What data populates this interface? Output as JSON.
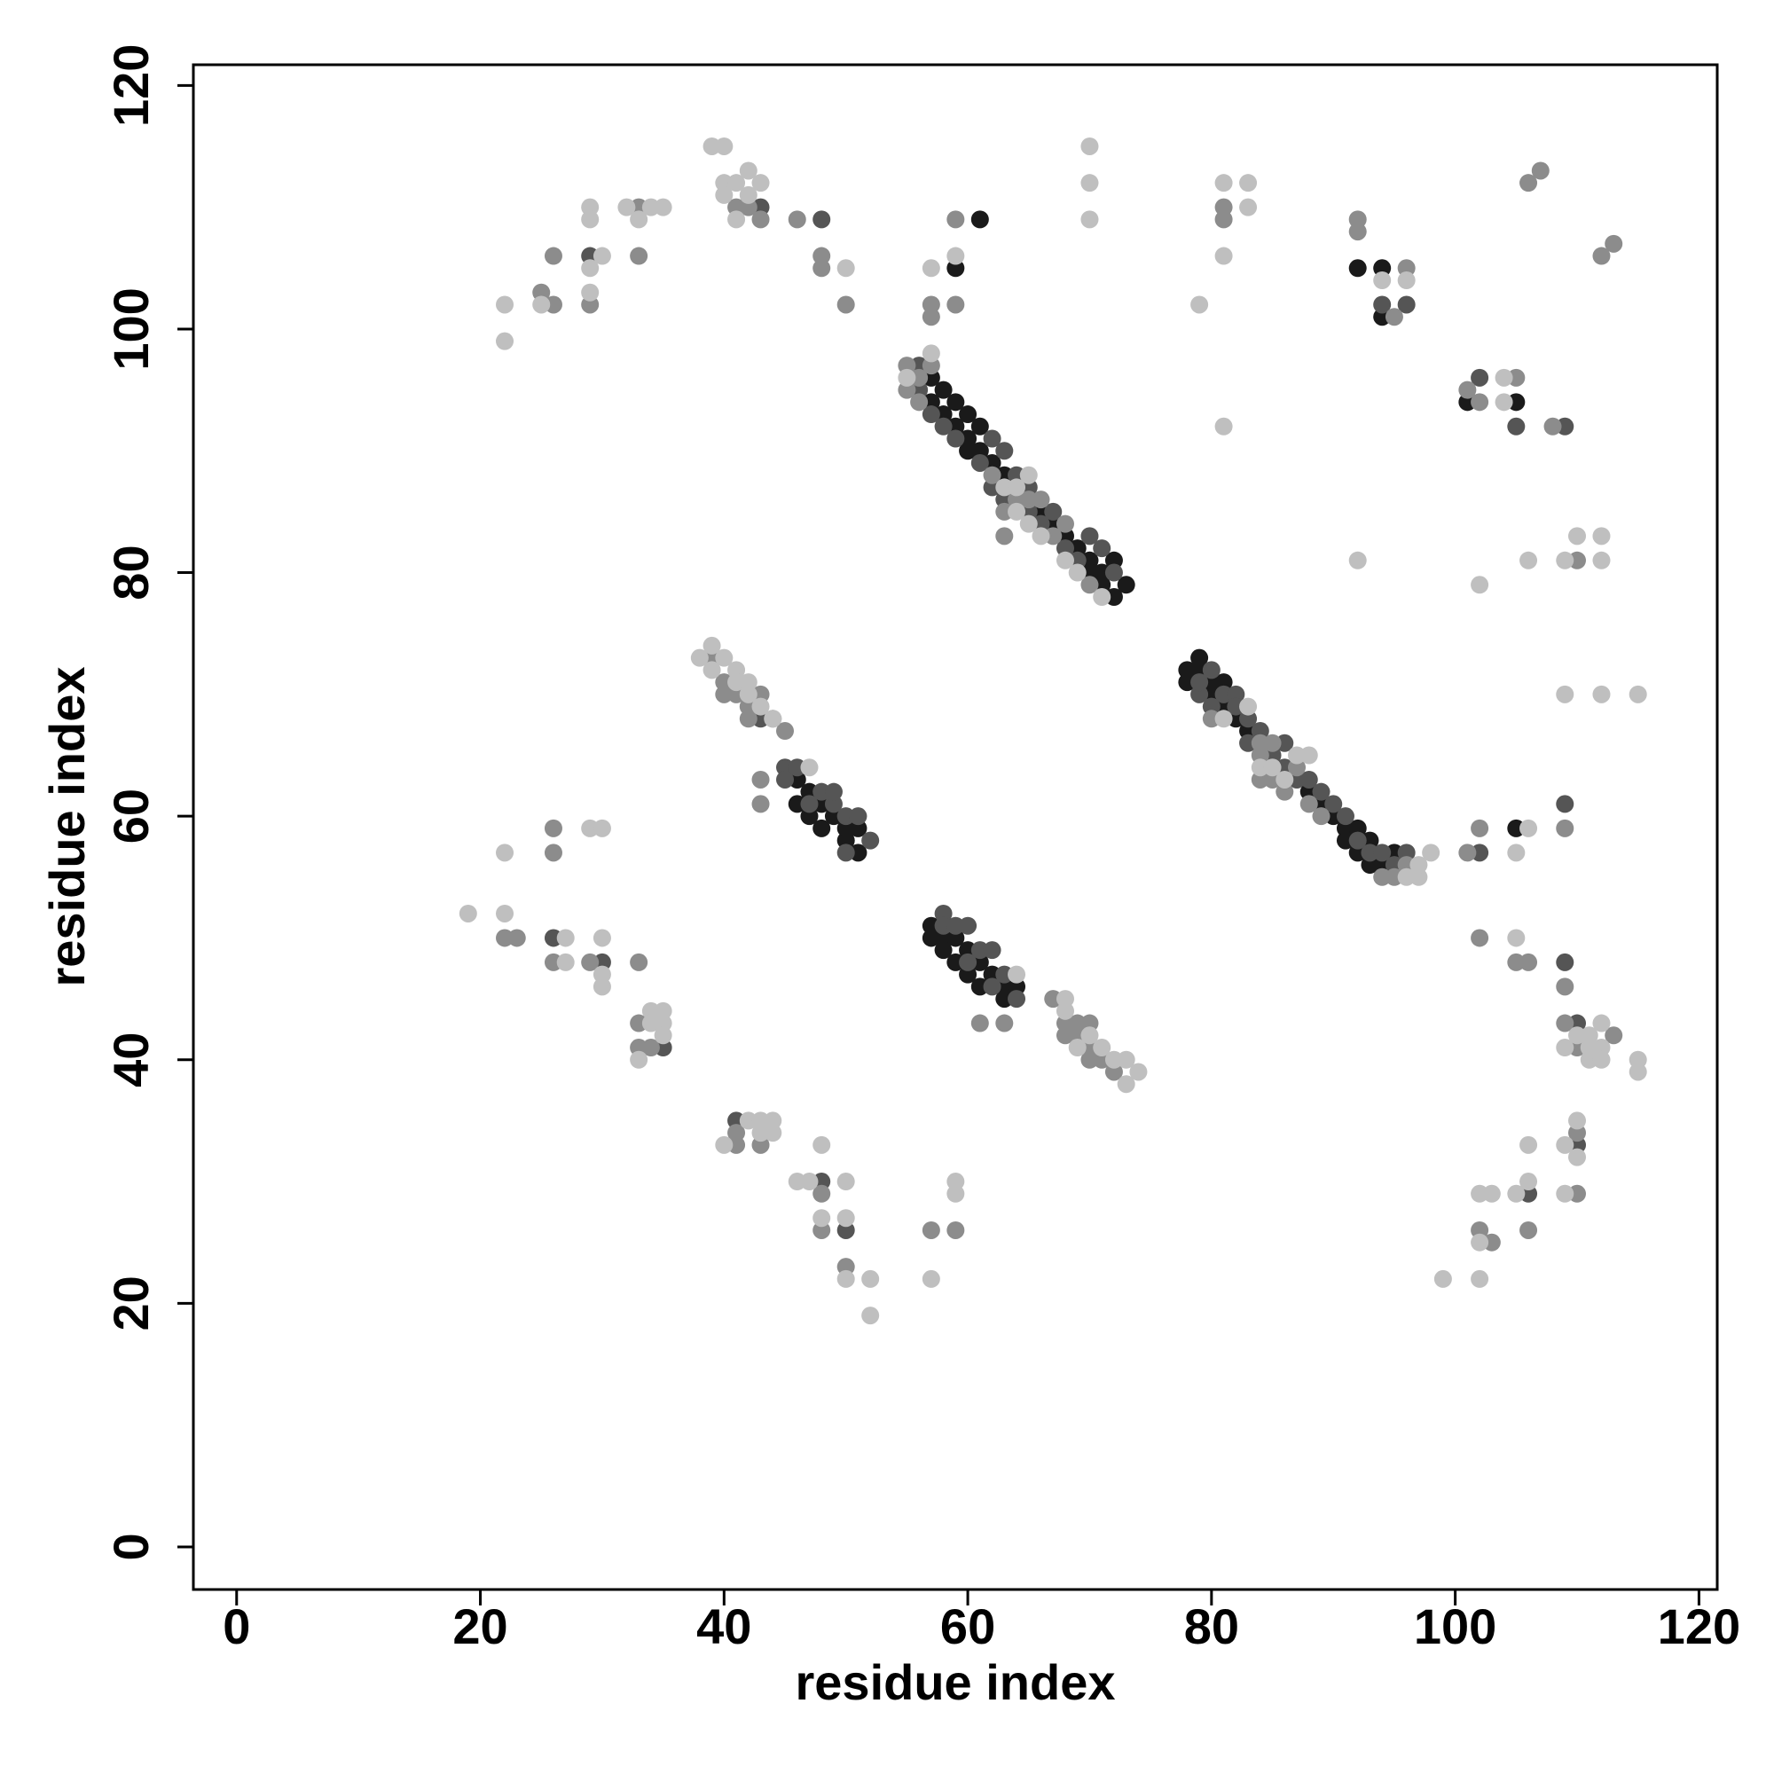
{
  "chart_data": {
    "type": "scatter",
    "xlabel": "residue index",
    "ylabel": "residue index",
    "xlim": [
      -3.55,
      121.5
    ],
    "ylim": [
      -3.5,
      121.7
    ],
    "xticks": [
      0,
      20,
      40,
      60,
      80,
      100,
      120
    ],
    "yticks": [
      0,
      20,
      40,
      60,
      80,
      100,
      120
    ],
    "series": [
      {
        "color": "#1a1a1a",
        "x": [
          57,
          57,
          58,
          58,
          59,
          59,
          60,
          60,
          60,
          61,
          61,
          62,
          63,
          66,
          67,
          68,
          69,
          70,
          70,
          71,
          71,
          72,
          72,
          73,
          78,
          78,
          79,
          79,
          80,
          80,
          81,
          81,
          82,
          83,
          88,
          89,
          90,
          91,
          91,
          92,
          92,
          93,
          93,
          94,
          95,
          46,
          46,
          47,
          47,
          48,
          48,
          49,
          50,
          51,
          50,
          51,
          57,
          57,
          58,
          58,
          59,
          59,
          60,
          60,
          61,
          61,
          62,
          63,
          63,
          64,
          59,
          61,
          92,
          94,
          94,
          101,
          105,
          105
        ],
        "values": [
          96,
          94,
          93,
          95,
          92,
          94,
          91,
          93,
          90,
          90,
          92,
          89,
          88,
          85,
          84,
          83,
          82,
          81,
          80,
          80,
          79,
          78,
          81,
          79,
          71,
          72,
          72,
          73,
          70,
          71,
          69,
          71,
          68,
          67,
          62,
          61,
          60,
          59,
          58,
          59,
          57,
          58,
          56,
          56,
          57,
          63,
          61,
          62,
          60,
          61,
          59,
          60,
          58,
          57,
          59,
          59,
          51,
          50,
          50,
          49,
          48,
          50,
          47,
          49,
          46,
          48,
          47,
          45,
          46,
          46,
          105,
          109,
          105,
          105,
          101,
          94,
          94,
          59
        ]
      },
      {
        "color": "#555555",
        "x": [
          56,
          56,
          57,
          58,
          59,
          61,
          62,
          62,
          63,
          63,
          64,
          65,
          65,
          66,
          67,
          68,
          69,
          70,
          71,
          72,
          79,
          80,
          81,
          82,
          82,
          83,
          83,
          84,
          85,
          86,
          86,
          87,
          88,
          89,
          90,
          91,
          92,
          93,
          94,
          95,
          96,
          79,
          80,
          45,
          45,
          46,
          47,
          48,
          49,
          49,
          50,
          51,
          52,
          50,
          43,
          58,
          58,
          59,
          60,
          60,
          61,
          62,
          62,
          63,
          64,
          29,
          43,
          48,
          94,
          96,
          102,
          105,
          109,
          102,
          109,
          109,
          110,
          26,
          30,
          35,
          41,
          48,
          50,
          106,
          110
        ],
        "values": [
          95,
          97,
          93,
          92,
          91,
          89,
          91,
          87,
          86,
          90,
          88,
          85,
          87,
          84,
          85,
          82,
          81,
          83,
          82,
          80,
          70,
          69,
          70,
          70,
          69,
          66,
          68,
          67,
          65,
          66,
          64,
          63,
          63,
          62,
          61,
          60,
          58,
          57,
          57,
          56,
          57,
          71,
          72,
          64,
          63,
          64,
          61,
          62,
          61,
          62,
          60,
          60,
          58,
          57,
          68,
          52,
          51,
          51,
          51,
          48,
          49,
          46,
          49,
          47,
          45,
          106,
          110,
          109,
          102,
          102,
          96,
          92,
          92,
          57,
          61,
          48,
          43,
          50,
          48,
          41,
          35,
          30,
          26,
          29,
          33
        ]
      },
      {
        "color": "#8c8c8c",
        "x": [
          55,
          55,
          56,
          56,
          57,
          62,
          63,
          63,
          64,
          65,
          66,
          67,
          68,
          70,
          80,
          84,
          84,
          85,
          85,
          86,
          87,
          88,
          89,
          94,
          95,
          84,
          96,
          43,
          43,
          40,
          40,
          41,
          42,
          43,
          44,
          45,
          42,
          39,
          61,
          63,
          67,
          68,
          68,
          69,
          70,
          70,
          71,
          72,
          69,
          70,
          25,
          26,
          26,
          29,
          33,
          33,
          41,
          42,
          43,
          46,
          48,
          48,
          50,
          57,
          57,
          59,
          59,
          81,
          81,
          92,
          92,
          95,
          96,
          101,
          102,
          105,
          108,
          106,
          107,
          112,
          113,
          110,
          101,
          102,
          109,
          102,
          105,
          106,
          109,
          109,
          110,
          113,
          102,
          103,
          106,
          110,
          110,
          22,
          23,
          26,
          26,
          26,
          29,
          33,
          33,
          33,
          34,
          41,
          41,
          43,
          48,
          48,
          50,
          57,
          59
        ],
        "values": [
          95,
          97,
          94,
          96,
          97,
          88,
          83,
          85,
          86,
          86,
          86,
          83,
          84,
          79,
          68,
          63,
          65,
          66,
          63,
          62,
          64,
          61,
          60,
          55,
          55,
          66,
          56,
          63,
          61,
          71,
          70,
          70,
          69,
          70,
          68,
          67,
          68,
          73,
          43,
          43,
          45,
          43,
          42,
          42,
          41,
          40,
          40,
          39,
          43,
          43,
          103,
          102,
          106,
          102,
          110,
          106,
          110,
          110,
          109,
          109,
          106,
          105,
          102,
          102,
          101,
          109,
          102,
          110,
          109,
          109,
          108,
          101,
          105,
          95,
          94,
          96,
          92,
          112,
          113,
          106,
          107,
          81,
          57,
          59,
          59,
          50,
          48,
          48,
          46,
          43,
          41,
          42,
          26,
          25,
          26,
          34,
          29,
          50,
          50,
          59,
          57,
          48,
          48,
          48,
          43,
          41,
          41,
          34,
          33,
          33,
          29,
          26,
          23,
          26,
          26
        ]
      },
      {
        "color": "#bfbfbf",
        "x": [
          55,
          57,
          63,
          64,
          64,
          65,
          65,
          66,
          68,
          69,
          71,
          81,
          84,
          85,
          86,
          87,
          88,
          96,
          97,
          97,
          98,
          83,
          47,
          38,
          39,
          40,
          41,
          39,
          41,
          42,
          43,
          44,
          42,
          64,
          68,
          68,
          69,
          71,
          72,
          73,
          73,
          74,
          70,
          22,
          22,
          25,
          29,
          29,
          29,
          29,
          30,
          32,
          33,
          34,
          35,
          39,
          40,
          40,
          40,
          41,
          41,
          42,
          42,
          43,
          50,
          57,
          59,
          70,
          70,
          70,
          79,
          81,
          81,
          83,
          83,
          81,
          94,
          96,
          104,
          104,
          92,
          102,
          106,
          109,
          110,
          112,
          112,
          109,
          112,
          115,
          105,
          106,
          105,
          109,
          110,
          111,
          111,
          111,
          112,
          112,
          112,
          115,
          115,
          99,
          102,
          102,
          102,
          103,
          105,
          106,
          106,
          109,
          109,
          110,
          110,
          19,
          22,
          22,
          27,
          27,
          29,
          30,
          30,
          30,
          30,
          33,
          34,
          34,
          35,
          35,
          35,
          40,
          42,
          43,
          43,
          44,
          44,
          46,
          47,
          48,
          48,
          50,
          50,
          50,
          52,
          52,
          57,
          59,
          59
        ],
        "values": [
          96,
          98,
          87,
          85,
          87,
          84,
          88,
          83,
          81,
          80,
          78,
          68,
          64,
          64,
          63,
          65,
          65,
          55,
          55,
          56,
          57,
          69,
          64,
          73,
          74,
          73,
          72,
          72,
          71,
          70,
          69,
          68,
          71,
          47,
          45,
          44,
          41,
          41,
          40,
          40,
          38,
          39,
          42,
          102,
          99,
          102,
          110,
          109,
          105,
          103,
          106,
          110,
          109,
          110,
          110,
          115,
          115,
          112,
          111,
          112,
          109,
          113,
          111,
          112,
          105,
          105,
          106,
          115,
          112,
          109,
          102,
          112,
          106,
          112,
          110,
          92,
          104,
          104,
          96,
          94,
          81,
          79,
          81,
          81,
          83,
          83,
          81,
          70,
          70,
          70,
          57,
          59,
          50,
          41,
          42,
          41,
          40,
          42,
          43,
          41,
          40,
          40,
          39,
          22,
          22,
          29,
          25,
          29,
          29,
          33,
          30,
          33,
          29,
          35,
          32,
          52,
          57,
          52,
          50,
          48,
          59,
          59,
          50,
          47,
          46,
          40,
          44,
          43,
          44,
          43,
          42,
          33,
          35,
          35,
          34,
          35,
          34,
          30,
          30,
          33,
          27,
          30,
          27,
          22,
          22,
          19,
          22,
          30,
          29
        ]
      }
    ]
  }
}
